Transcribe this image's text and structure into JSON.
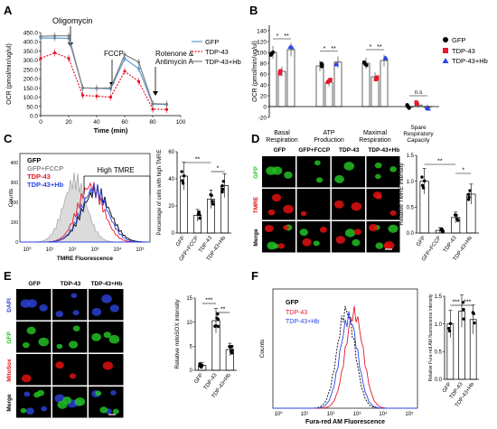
{
  "colors": {
    "gfp": "#5b9bd5",
    "tdp43": "#e8182a",
    "hb": "#7f7f7f",
    "gfp_dot": "#000000",
    "tdp43_dot": "#e8182a",
    "hb_dot": "#2b45e6",
    "hb_legend_text": "#2b45e6",
    "tmre_red": "#e01010",
    "green_chan": "#22c022",
    "dapi": "#2a3fd0"
  },
  "panels": {
    "A": "A",
    "B": "B",
    "C": "C",
    "D": "D",
    "E": "E",
    "F": "F"
  },
  "panelA": {
    "annotations": {
      "oligomycin": "Oligomycin",
      "fccp": "FCCP",
      "rotenone": "Rotenone &",
      "antimycin": "Antimycin A"
    },
    "legend": [
      "GFP",
      "TDP-43",
      "TDP-43+Hb"
    ]
  },
  "panelB": {
    "legend": [
      "GFP",
      "TDP-43",
      "TDP-43+Hb"
    ],
    "category_lines": [
      [
        "Basal",
        "Respiration"
      ],
      [
        "ATP",
        "Production"
      ],
      [
        "Maximal",
        "Respiration"
      ],
      [
        "Spare",
        "Respiratory",
        "Capacity"
      ]
    ],
    "sig": {
      "basal": [
        "*",
        "**"
      ],
      "atp": [
        "*",
        "**"
      ],
      "maximal": [
        "*",
        "**"
      ],
      "spare": [
        "n.s"
      ]
    }
  },
  "panelC": {
    "legend": [
      "GFP",
      "GFP+FCCP",
      "TDP-43",
      "TDP-43+Hb"
    ],
    "high_tmre": "High TMRE",
    "bar_ylabel": "Percentage of cells with high TMRE",
    "sig": [
      "**",
      "*"
    ]
  },
  "panelD": {
    "col_headers": [
      "GFP",
      "GFP+FCCP",
      "TDP-43",
      "TDP-43+Hb"
    ],
    "row_labels": [
      "GFP",
      "TMRE",
      "Merge"
    ],
    "bar_ylabel": "Relative TMRE intensity",
    "sig": [
      "**",
      "*"
    ]
  },
  "panelE": {
    "col_headers": [
      "GFP",
      "TDP-43",
      "TDP-43+Hb"
    ],
    "row_labels": [
      "DAPI",
      "GFP",
      "MitoSox",
      "Merge"
    ],
    "bar_ylabel": "Relative mitoSOX intensity",
    "sig": [
      "***",
      "**"
    ]
  },
  "panelF": {
    "legend": [
      "GFP",
      "TDP-43",
      "TDP-43+Hb"
    ],
    "bar_ylabel": "Relative Fura-red AM fluorescence intensity",
    "sig": [
      "***",
      "***"
    ]
  },
  "chart_data": [
    {
      "id": "A",
      "type": "line",
      "xlabel": "Time (min)",
      "ylabel": "OCR (pmol/min/ug/ul)",
      "xlim": [
        0,
        100
      ],
      "ylim": [
        0,
        450
      ],
      "x": [
        0,
        10,
        20,
        30,
        40,
        50,
        60,
        70,
        80,
        90
      ],
      "series": [
        {
          "name": "GFP",
          "values": [
            420,
            420,
            418,
            150,
            148,
            145,
            308,
            255,
            62,
            60
          ]
        },
        {
          "name": "TDP-43",
          "values": [
            310,
            340,
            310,
            110,
            105,
            100,
            240,
            185,
            35,
            33
          ]
        },
        {
          "name": "TDP-43+Hb",
          "values": [
            430,
            432,
            432,
            150,
            148,
            150,
            330,
            290,
            65,
            62
          ]
        }
      ]
    },
    {
      "id": "B",
      "type": "bar",
      "ylabel": "OCR (pmol/min/ug/ul)",
      "ylim": [
        -20,
        150
      ],
      "categories": [
        "Basal Respiration",
        "ATP Production",
        "Maximal Respiration",
        "Spare Respiratory Capacity"
      ],
      "series": [
        {
          "name": "GFP",
          "values": [
            100,
            75,
            80,
            0
          ]
        },
        {
          "name": "TDP-43",
          "values": [
            65,
            45,
            55,
            3
          ]
        },
        {
          "name": "TDP-43+Hb",
          "values": [
            105,
            82,
            85,
            0
          ]
        }
      ]
    },
    {
      "id": "C-histogram",
      "type": "area",
      "xlabel": "TMRE Fluorescence",
      "ylabel": "Counts",
      "series": [
        {
          "name": "GFP"
        },
        {
          "name": "GFP+FCCP"
        },
        {
          "name": "TDP-43"
        },
        {
          "name": "TDP-43+Hb"
        }
      ]
    },
    {
      "id": "C-bar",
      "type": "bar",
      "ylabel": "Percentage of cells with high TMRE",
      "ylim": [
        0,
        60
      ],
      "categories": [
        "GFP",
        "GFP+FCCP",
        "TDP-43",
        "TDP-43+Hb"
      ],
      "values": [
        42,
        13,
        25,
        35
      ]
    },
    {
      "id": "D-bar",
      "type": "bar",
      "ylabel": "Relative TMRE intensity",
      "ylim": [
        0,
        1.5
      ],
      "categories": [
        "GFP",
        "GFP+FCCP",
        "TDP-43",
        "TDP-43+Hb"
      ],
      "values": [
        1.0,
        0.05,
        0.3,
        0.75
      ]
    },
    {
      "id": "E-bar",
      "type": "bar",
      "ylabel": "Relative mitoSOX intensity",
      "ylim": [
        0,
        15
      ],
      "categories": [
        "GFP",
        "TDP-43",
        "TDP-43+Hb"
      ],
      "values": [
        1.0,
        10.3,
        4.3
      ]
    },
    {
      "id": "F-histogram",
      "type": "line",
      "xlabel": "Fura-red AM Fluorescence",
      "ylabel": "Counts",
      "series": [
        {
          "name": "GFP"
        },
        {
          "name": "TDP-43"
        },
        {
          "name": "TDP-43+Hb"
        }
      ]
    },
    {
      "id": "F-bar",
      "type": "bar",
      "ylabel": "Relative Fura-red AM fluorescence intensity",
      "ylim": [
        0,
        1.5
      ],
      "categories": [
        "GFP",
        "TDP-43",
        "TDP-43+Hb"
      ],
      "values": [
        1.0,
        1.23,
        1.08
      ]
    }
  ]
}
